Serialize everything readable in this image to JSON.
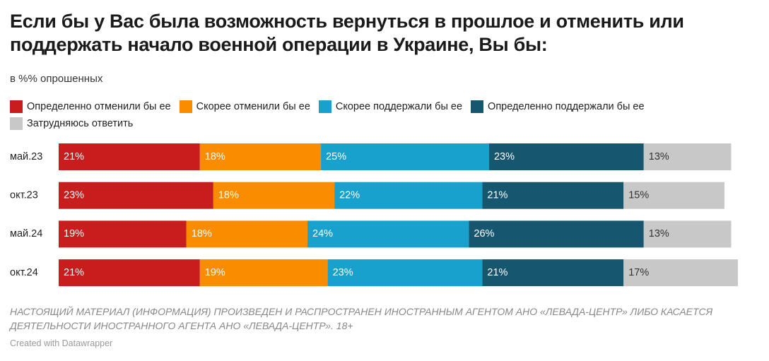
{
  "chart_data": {
    "type": "stacked-bar",
    "title": "Если бы у Вас была возможность вернуться в прошлое и отменить или поддержать начало военной операции в Украине, Вы бы:",
    "subtitle": "в %% опрошенных",
    "categories": [
      "май.23",
      "окт.23",
      "май.24",
      "окт.24"
    ],
    "series": [
      {
        "name": "Определенно отменили бы ее",
        "color": "#c71e1d",
        "values": [
          21,
          23,
          19,
          21
        ],
        "value_labels": [
          "21%",
          "23%",
          "19%",
          "21%"
        ]
      },
      {
        "name": "Скорее отменили бы ее",
        "color": "#fa8c00",
        "values": [
          18,
          18,
          18,
          19
        ],
        "value_labels": [
          "18%",
          "18%",
          "18%",
          "19%"
        ]
      },
      {
        "name": "Скорее поддержали бы ее",
        "color": "#18a1cd",
        "values": [
          25,
          22,
          24,
          23
        ],
        "value_labels": [
          "25%",
          "22%",
          "24%",
          "23%"
        ]
      },
      {
        "name": "Определенно поддержали бы ее",
        "color": "#16566f",
        "values": [
          23,
          21,
          26,
          21
        ],
        "value_labels": [
          "23%",
          "21%",
          "26%",
          "21%"
        ]
      },
      {
        "name": "Затрудняюсь ответить",
        "color": "#c8c8c8",
        "values": [
          13,
          15,
          13,
          17
        ],
        "value_labels": [
          "13%",
          "15%",
          "13%",
          "17%"
        ]
      }
    ],
    "note": "НАСТОЯЩИЙ МАТЕРИАЛ (ИНФОРМАЦИЯ) ПРОИЗВЕДЕН И РАСПРОСТРАНЕН ИНОСТРАННЫМ АГЕНТОМ АНО «ЛЕВАДА-ЦЕНТР» ЛИБО КАСАЕТСЯ ДЕЯТЕЛЬНОСТИ ИНОСТРАННОГО АГЕНТА АНО «ЛЕВАДА-ЦЕНТР». 18+",
    "credit": "Created with Datawrapper"
  }
}
